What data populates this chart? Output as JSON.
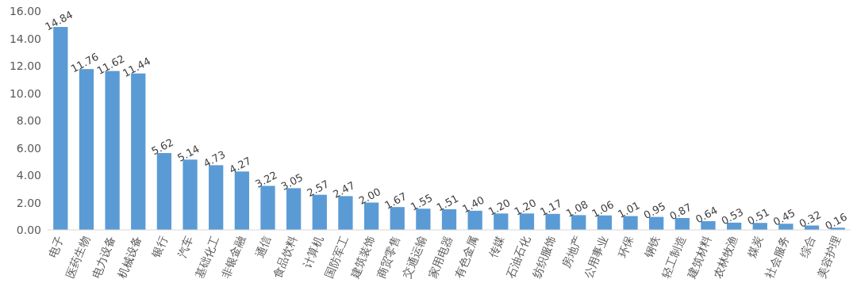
{
  "chart_data": {
    "type": "bar",
    "categories": [
      "电子",
      "医药生物",
      "电力设备",
      "机械设备",
      "银行",
      "汽车",
      "基础化工",
      "非银金融",
      "通信",
      "食品饮料",
      "计算机",
      "国防军工",
      "建筑装饰",
      "商贸零售",
      "交通运输",
      "家用电器",
      "有色金属",
      "传媒",
      "石油石化",
      "纺织服饰",
      "房地产",
      "公用事业",
      "环保",
      "钢铁",
      "轻工制造",
      "建筑材料",
      "农林牧渔",
      "煤炭",
      "社会服务",
      "综合",
      "美容护理"
    ],
    "values": [
      14.84,
      11.76,
      11.62,
      11.44,
      5.62,
      5.14,
      4.73,
      4.27,
      3.22,
      3.05,
      2.57,
      2.47,
      2.0,
      1.67,
      1.55,
      1.51,
      1.4,
      1.2,
      1.2,
      1.17,
      1.08,
      1.06,
      1.01,
      0.95,
      0.87,
      0.64,
      0.53,
      0.51,
      0.45,
      0.32,
      0.16
    ],
    "value_labels": [
      "14.84",
      "11.76",
      "11.62",
      "11.44",
      "5.62",
      "5.14",
      "4.73",
      "4.27",
      "3.22",
      "3.05",
      "2.57",
      "2.47",
      "2.00",
      "1.67",
      "1.55",
      "1.51",
      "1.40",
      "1.20",
      "1.20",
      "1.17",
      "1.08",
      "1.06",
      "1.01",
      "0.95",
      "0.87",
      "0.64",
      "0.53",
      "0.51",
      "0.45",
      "0.32",
      "0.16"
    ],
    "color": "#5b9bd5",
    "ylim": [
      0,
      16
    ],
    "yticks": [
      {
        "value": 0,
        "label": "0.00"
      },
      {
        "value": 2,
        "label": "2.00"
      },
      {
        "value": 4,
        "label": "4.00"
      },
      {
        "value": 6,
        "label": "6.00"
      },
      {
        "value": 8,
        "label": "8.00"
      },
      {
        "value": 10,
        "label": "10.00"
      },
      {
        "value": 12,
        "label": "12.00"
      },
      {
        "value": 14,
        "label": "14.00"
      },
      {
        "value": 16,
        "label": "16.00"
      }
    ],
    "grid": false
  }
}
